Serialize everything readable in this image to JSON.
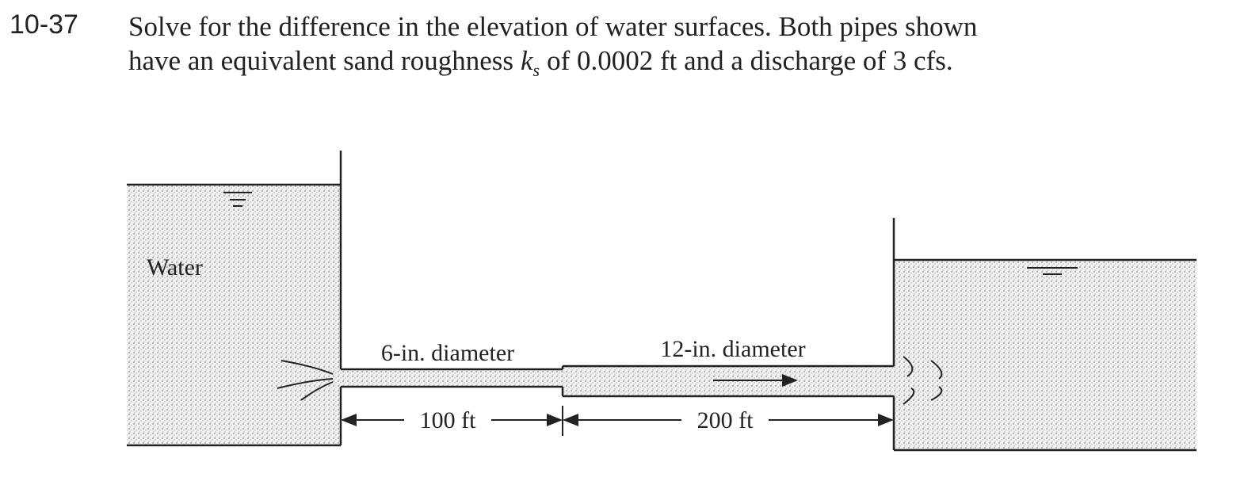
{
  "problem": {
    "number": "10-37",
    "line1": "Solve for the difference in the elevation of water surfaces. Both pipes shown",
    "line2_before": "have an equivalent sand roughness",
    "symbol": "k",
    "subscript": "s",
    "line2_after": "of 0.0002 ft and a discharge of 3 cfs."
  },
  "diagram": {
    "water_label": "Water",
    "pipe1_label": "6-in. diameter",
    "pipe2_label": "12-in. diameter",
    "length1": "100 ft",
    "length2": "200 ft"
  }
}
